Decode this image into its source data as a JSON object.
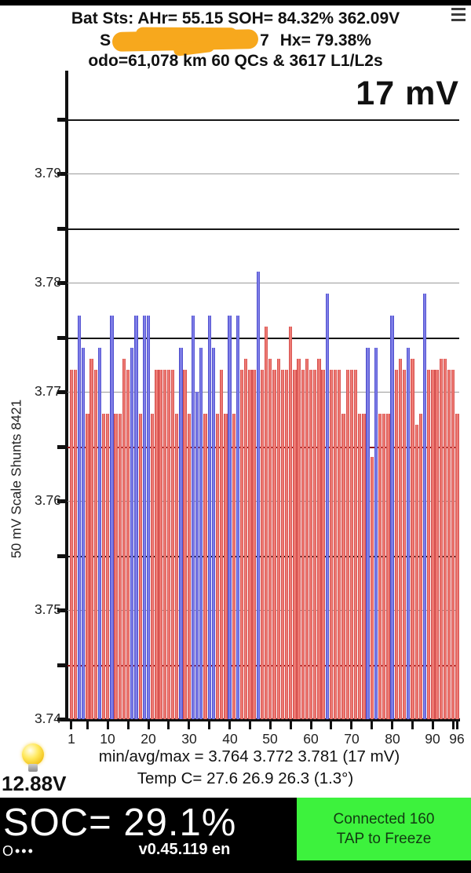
{
  "header": {
    "line1": "Bat Sts: AHr= 55.15 SOH= 84.32% 362.09V",
    "vin_prefix": "S",
    "vin_suffix": "7",
    "hx": "Hx= 79.38%",
    "odo_line": "odo=61,078 km 60 QCs & 3617 L1/L2s"
  },
  "chart_data": {
    "type": "bar",
    "title": "17 mV",
    "ylabel": "50 mV Scale  Shunts 8421",
    "ylim": [
      3.74,
      3.798
    ],
    "grid_step": 0.005,
    "red_gridlines": [
      3.765,
      3.745
    ],
    "y_tick_labels": [
      "3.79",
      "3.78",
      "3.77",
      "3.76",
      "3.75",
      "3.74"
    ],
    "x_tick_labels": [
      1,
      10,
      20,
      30,
      40,
      50,
      60,
      70,
      80,
      90,
      96
    ],
    "x_minor_tick_step": 5,
    "cells": 96,
    "values": [
      3.772,
      3.772,
      3.777,
      3.774,
      3.768,
      3.773,
      3.772,
      3.774,
      3.768,
      3.768,
      3.777,
      3.768,
      3.768,
      3.773,
      3.772,
      3.774,
      3.777,
      3.768,
      3.777,
      3.777,
      3.768,
      3.772,
      3.772,
      3.772,
      3.772,
      3.772,
      3.768,
      3.774,
      3.772,
      3.768,
      3.777,
      3.77,
      3.774,
      3.768,
      3.777,
      3.774,
      3.768,
      3.772,
      3.768,
      3.777,
      3.768,
      3.777,
      3.772,
      3.773,
      3.772,
      3.772,
      3.781,
      3.772,
      3.776,
      3.773,
      3.772,
      3.773,
      3.772,
      3.772,
      3.776,
      3.772,
      3.773,
      3.772,
      3.773,
      3.772,
      3.772,
      3.773,
      3.772,
      3.779,
      3.772,
      3.772,
      3.772,
      3.768,
      3.772,
      3.772,
      3.772,
      3.768,
      3.768,
      3.774,
      3.764,
      3.774,
      3.768,
      3.768,
      3.768,
      3.777,
      3.772,
      3.773,
      3.772,
      3.774,
      3.773,
      3.767,
      3.768,
      3.779,
      3.772,
      3.772,
      3.772,
      3.773,
      3.773,
      3.772,
      3.772,
      3.768
    ],
    "shunt_cells": [
      3,
      4,
      8,
      11,
      16,
      17,
      19,
      20,
      28,
      31,
      32,
      33,
      35,
      36,
      40,
      42,
      47,
      64,
      74,
      76,
      80,
      84,
      88
    ],
    "bar_color_normal": "#e05252",
    "bar_color_shunt": "#5252d8",
    "min": 3.764,
    "avg": 3.772,
    "max": 3.781,
    "delta_mv": 17
  },
  "footer": {
    "min_avg_max": "min/avg/max = 3.764 3.772 3.781  (17 mV)",
    "temp": "Temp C= 27.6  26.9  26.3  (1.3°)",
    "aux_voltage": "12.88V"
  },
  "bottom_bar": {
    "soc": "SOC= 29.1%",
    "version": "v0.45.119 en",
    "pager": "O•••",
    "connected_line1": "Connected 160",
    "connected_line2": "TAP to Freeze",
    "connect_bg": "#3df23d",
    "connect_text_color": "#123a12"
  }
}
